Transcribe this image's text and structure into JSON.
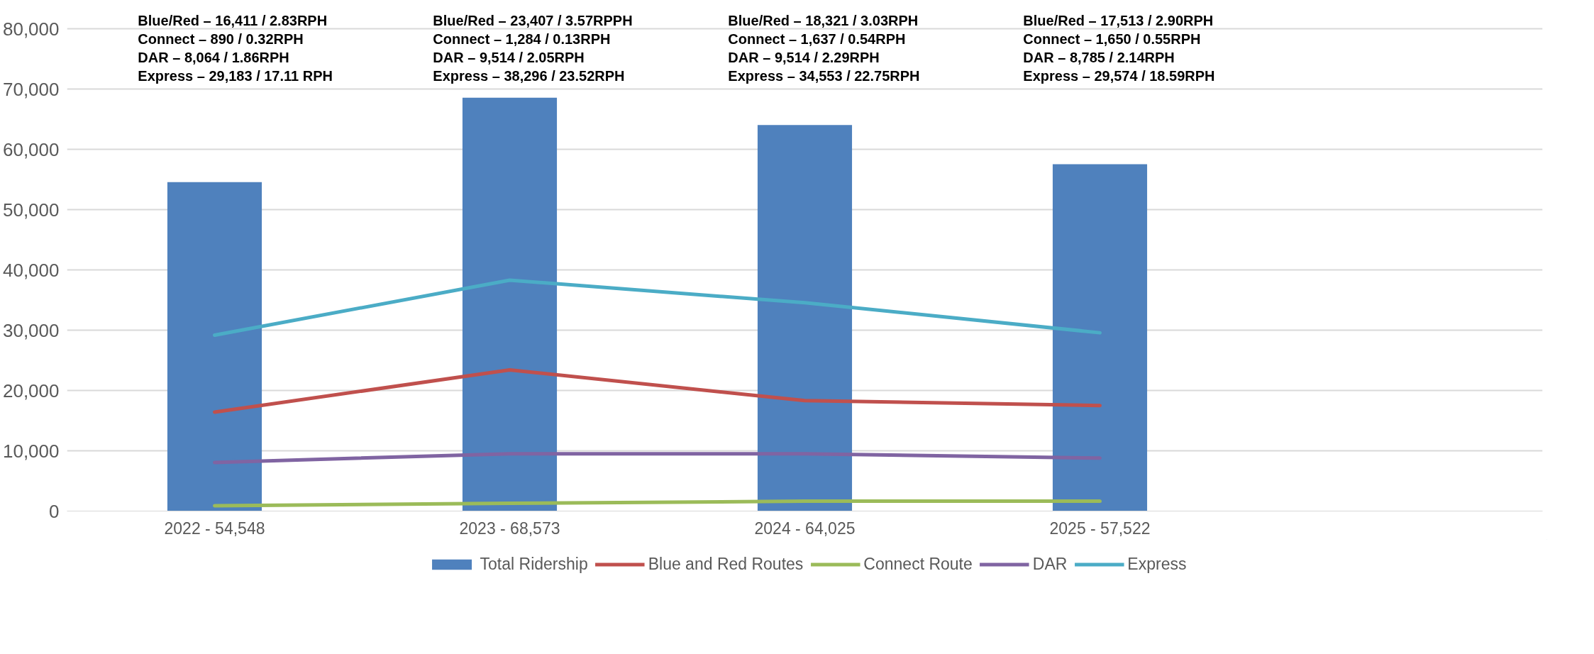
{
  "chart_data": {
    "type": "bar",
    "categories": [
      "2022 - 54,548",
      "2023 - 68,573",
      "2024 - 64,025",
      "2025 - 57,522",
      null
    ],
    "series": [
      {
        "name": "Total Ridership",
        "color": "#4f81bd",
        "values": [
          54548,
          68573,
          64025,
          57522,
          null
        ]
      },
      {
        "name": "Blue and Red Routes",
        "type": "line",
        "color": "#c0504d",
        "values": [
          16411,
          23407,
          18321,
          17513,
          null
        ]
      },
      {
        "name": "Connect Route",
        "type": "line",
        "color": "#9bbb59",
        "values": [
          890,
          1284,
          1637,
          1650,
          null
        ]
      },
      {
        "name": "DAR",
        "type": "line",
        "color": "#8064a2",
        "values": [
          8064,
          9514,
          9514,
          8785,
          null
        ]
      },
      {
        "name": "Express",
        "type": "line",
        "color": "#4bacc6",
        "values": [
          29183,
          38296,
          34553,
          29574,
          null
        ]
      }
    ],
    "ylim": [
      0,
      80000
    ],
    "yticks": [
      {
        "value": 0,
        "label": "0"
      },
      {
        "value": 10000,
        "label": "10,000"
      },
      {
        "value": 20000,
        "label": "20,000"
      },
      {
        "value": 30000,
        "label": "30,000"
      },
      {
        "value": 40000,
        "label": "40,000"
      },
      {
        "value": 50000,
        "label": "50,000"
      },
      {
        "value": 60000,
        "label": "60,000"
      },
      {
        "value": 70000,
        "label": "70,000"
      },
      {
        "value": 80000,
        "label": "80,000"
      }
    ],
    "grid": "y",
    "legend": "bottom",
    "marker": "none",
    "line_style": "solid",
    "annotations": [
      "Blue/Red – 16,411 / 2.83RPH",
      "Connect – 890 / 0.32RPH",
      "DAR – 8,064 / 1.86RPH",
      "Express – 29,183 / 17.11 RPH",
      "Blue/Red – 23,407 / 3.57RPPH",
      "Connect – 1,284 / 0.13RPH",
      "DAR – 9,514 / 2.05RPH",
      "Express – 38,296 / 23.52RPH",
      "Blue/Red – 18,321 / 3.03RPH",
      "Connect – 1,637 / 0.54RPH",
      "DAR – 9,514 / 2.29RPH",
      "Express – 34,553 / 22.75RPH",
      "Blue/Red – 17,513 / 2.90RPH",
      "Connect – 1,650 / 0.55RPH",
      "DAR – 8,785 / 2.14RPH",
      "Express – 29,574 / 18.59RPH"
    ]
  }
}
